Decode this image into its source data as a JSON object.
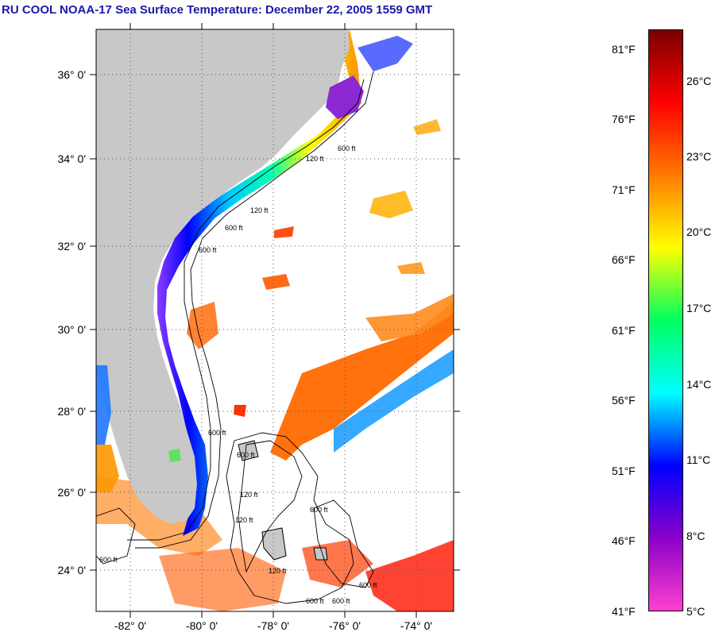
{
  "title": "RU COOL  NOAA-17  Sea Surface Temperature:  December 22, 2005 1559 GMT",
  "map": {
    "lat_labels": [
      "36° 0'",
      "34° 0'",
      "32° 0'",
      "30° 0'",
      "28° 0'",
      "26° 0'",
      "24° 0'"
    ],
    "lon_labels": [
      "-82° 0'",
      "-80° 0'",
      "-78° 0'",
      "-76° 0'",
      "-74° 0'"
    ],
    "depth_labels": [
      "120 ft",
      "600 ft",
      "120 ft",
      "600 ft",
      "600 ft",
      "600 ft",
      "120 ft",
      "600 ft",
      "120 ft",
      "600 ft",
      "600 ft",
      "600 ft",
      "600 ft",
      "120 ft",
      "600 ft"
    ],
    "colors": {
      "land": "#c8c8c8",
      "background": "#ffffff",
      "grid": "#555555"
    }
  },
  "colorbar": {
    "fahrenheit_labels": [
      "81°F",
      "76°F",
      "71°F",
      "66°F",
      "61°F",
      "56°F",
      "51°F",
      "46°F",
      "41°F"
    ],
    "celsius_labels": [
      "26°C",
      "23°C",
      "20°C",
      "17°C",
      "14°C",
      "11°C",
      "8°C",
      "5°C"
    ],
    "colors": [
      "#7a0000",
      "#ff0000",
      "#ff7a00",
      "#ffff00",
      "#00ff60",
      "#00ffff",
      "#0000ff",
      "#8a00c8",
      "#ff40d0"
    ]
  }
}
